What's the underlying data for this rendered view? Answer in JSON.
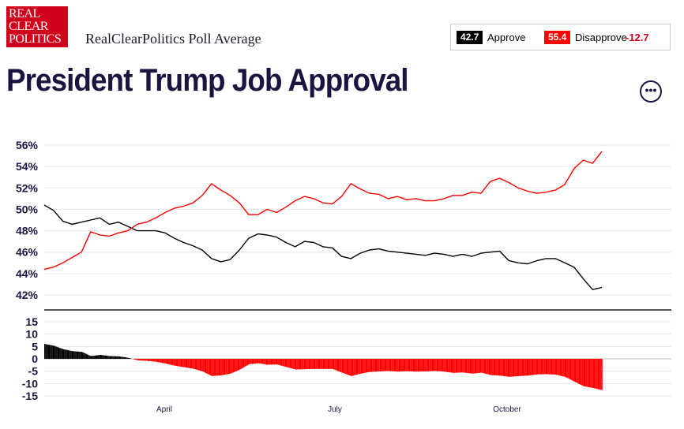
{
  "logo": {
    "lines": [
      "REAL",
      "CLEAR",
      "POLITICS"
    ]
  },
  "header": {
    "brand": "RealClearPolitics Poll Average",
    "title": "President Trump Job Approval",
    "menu_icon": "ellipsis-icon"
  },
  "legend": {
    "approve_value": "42.7",
    "approve_label": "Approve",
    "disapprove_value": "55.4",
    "disapprove_label": "Disapprove",
    "spread": "-12.7"
  },
  "colors": {
    "approve": "#000000",
    "disapprove": "#ff0000",
    "title": "#1a1440",
    "accent": "#d0021b"
  },
  "chart_data": [
    {
      "type": "line",
      "title": "",
      "ylim": [
        41,
        57
      ],
      "y_ticks": [
        "56%",
        "54%",
        "52%",
        "50%",
        "48%",
        "46%",
        "44%",
        "42%"
      ],
      "x_ticks": [
        "April",
        "July",
        "October"
      ],
      "grid": true,
      "x": [
        0,
        5,
        10,
        15,
        20,
        25,
        30,
        35,
        40,
        45,
        50,
        55,
        60,
        65,
        70,
        75,
        80,
        85,
        90,
        95,
        100,
        105,
        110,
        115,
        120,
        125,
        130,
        135,
        140,
        145,
        150,
        155,
        160,
        165,
        170,
        175,
        180,
        185,
        190,
        195,
        200,
        205,
        210,
        215,
        220,
        225,
        230,
        235,
        240,
        245,
        250,
        255,
        260,
        265,
        270,
        275,
        280,
        285,
        290,
        295,
        300
      ],
      "series": [
        {
          "name": "Approve",
          "values": [
            50.4,
            49.9,
            48.9,
            48.6,
            48.8,
            49.0,
            49.2,
            48.6,
            48.8,
            48.4,
            48.0,
            48.0,
            48.0,
            47.8,
            47.3,
            46.9,
            46.6,
            46.2,
            45.4,
            45.1,
            45.3,
            46.2,
            47.3,
            47.7,
            47.6,
            47.4,
            46.9,
            46.5,
            47.0,
            46.9,
            46.5,
            46.4,
            45.6,
            45.4,
            45.9,
            46.2,
            46.3,
            46.1,
            46.0,
            45.9,
            45.8,
            45.7,
            45.9,
            45.8,
            45.6,
            45.8,
            45.6,
            45.9,
            46.0,
            46.1,
            45.2,
            45.0,
            44.9,
            45.2,
            45.4,
            45.4,
            45.0,
            44.6,
            43.5,
            42.5,
            42.7
          ]
        },
        {
          "name": "Disapprove",
          "values": [
            44.4,
            44.6,
            45.0,
            45.5,
            46.0,
            47.9,
            47.6,
            47.5,
            47.8,
            48.0,
            48.6,
            48.8,
            49.2,
            49.7,
            50.1,
            50.3,
            50.6,
            51.3,
            52.4,
            51.8,
            51.3,
            50.6,
            49.5,
            49.5,
            50.0,
            49.7,
            50.2,
            50.8,
            51.2,
            51.0,
            50.6,
            50.5,
            51.2,
            52.4,
            51.9,
            51.5,
            51.4,
            51.0,
            51.2,
            50.9,
            51.0,
            50.8,
            50.8,
            51.0,
            51.3,
            51.3,
            51.6,
            51.5,
            52.6,
            52.9,
            52.5,
            52.0,
            51.7,
            51.5,
            51.6,
            51.8,
            52.3,
            53.8,
            54.6,
            54.3,
            55.4
          ]
        }
      ]
    },
    {
      "type": "bar",
      "title": "",
      "ylim": [
        -15,
        15
      ],
      "y_ticks": [
        "15",
        "10",
        "5",
        "0",
        "-5",
        "-10",
        "-15"
      ],
      "x_ticks": [
        "April",
        "July",
        "October"
      ],
      "grid": true,
      "x": [
        0,
        5,
        10,
        15,
        20,
        25,
        30,
        35,
        40,
        45,
        50,
        55,
        60,
        65,
        70,
        75,
        80,
        85,
        90,
        95,
        100,
        105,
        110,
        115,
        120,
        125,
        130,
        135,
        140,
        145,
        150,
        155,
        160,
        165,
        170,
        175,
        180,
        185,
        190,
        195,
        200,
        205,
        210,
        215,
        220,
        225,
        230,
        235,
        240,
        245,
        250,
        255,
        260,
        265,
        270,
        275,
        280,
        285,
        290,
        295,
        300
      ],
      "series": [
        {
          "name": "Spread",
          "values": [
            6.0,
            5.3,
            3.9,
            3.1,
            2.8,
            1.1,
            1.6,
            1.1,
            1.0,
            0.4,
            -0.6,
            -0.8,
            -1.2,
            -1.9,
            -2.8,
            -3.4,
            -4.0,
            -5.1,
            -7.0,
            -6.7,
            -6.0,
            -4.4,
            -2.2,
            -1.8,
            -2.4,
            -2.3,
            -3.3,
            -4.3,
            -4.2,
            -4.1,
            -4.1,
            -4.1,
            -5.6,
            -7.0,
            -6.0,
            -5.3,
            -5.1,
            -4.9,
            -5.2,
            -5.0,
            -5.2,
            -5.1,
            -4.9,
            -5.2,
            -5.7,
            -5.5,
            -6.0,
            -5.6,
            -6.6,
            -6.8,
            -7.3,
            -7.0,
            -6.8,
            -6.3,
            -6.2,
            -6.4,
            -7.3,
            -9.2,
            -11.1,
            -11.8,
            -12.7
          ]
        }
      ]
    }
  ]
}
